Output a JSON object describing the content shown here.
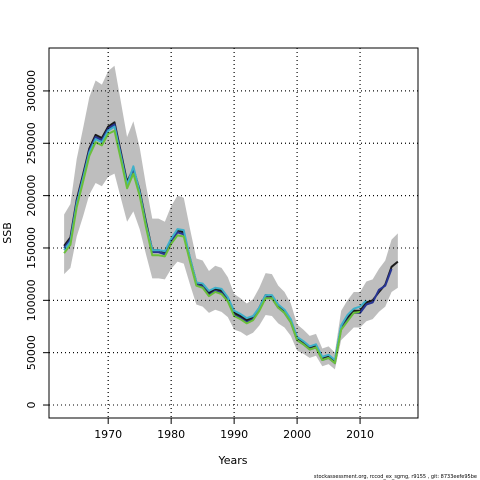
{
  "chart_data": {
    "type": "line",
    "xlabel": "Years",
    "ylabel": "SSB",
    "caption": "stockassessment.org, rccod_ex_sgmg, r9155 , git: 8733eefe95be",
    "x": [
      1963,
      1964,
      1965,
      1966,
      1967,
      1968,
      1969,
      1970,
      1971,
      1972,
      1973,
      1974,
      1975,
      1976,
      1977,
      1978,
      1979,
      1980,
      1981,
      1982,
      1983,
      1984,
      1985,
      1986,
      1987,
      1988,
      1989,
      1990,
      1991,
      1992,
      1993,
      1994,
      1995,
      1996,
      1997,
      1998,
      1999,
      2000,
      2001,
      2002,
      2003,
      2004,
      2005,
      2006,
      2007,
      2008,
      2009,
      2010,
      2011,
      2012,
      2013,
      2014,
      2015,
      2016
    ],
    "band": {
      "color": "#bebebe",
      "upper": [
        182000,
        192000,
        235000,
        264000,
        294000,
        310000,
        306000,
        319000,
        324000,
        290000,
        256000,
        271000,
        246000,
        210000,
        178000,
        178000,
        175000,
        190000,
        200000,
        198000,
        168000,
        140000,
        138000,
        128000,
        133000,
        131000,
        122000,
        106000,
        102000,
        97000,
        101000,
        112000,
        126000,
        125000,
        114000,
        108000,
        97000,
        77000,
        72000,
        66000,
        68000,
        54000,
        56000,
        50000,
        90000,
        100000,
        108000,
        108000,
        118000,
        120000,
        130000,
        138000,
        158000,
        164000
      ],
      "lower": [
        125000,
        131000,
        161000,
        180000,
        201000,
        212000,
        209000,
        218000,
        221000,
        198000,
        175000,
        185000,
        168000,
        144000,
        121000,
        121000,
        120000,
        130000,
        137000,
        135000,
        115000,
        96000,
        94000,
        88000,
        91000,
        89000,
        84000,
        72000,
        70000,
        66000,
        69000,
        76000,
        86000,
        85000,
        78000,
        74000,
        66000,
        52000,
        49000,
        45000,
        47000,
        37000,
        39000,
        34000,
        62000,
        68000,
        74000,
        74000,
        80000,
        82000,
        89000,
        94000,
        108000,
        112000
      ]
    },
    "series": [
      {
        "color": "#1a1a1a",
        "values": [
          152000,
          160000,
          196000,
          220000,
          245000,
          258000,
          255000,
          266000,
          270000,
          242000,
          213000,
          226000,
          205000,
          175000,
          148000,
          148000,
          146000,
          158000,
          167000,
          165000,
          140000,
          117000,
          115000,
          107000,
          111000,
          109000,
          102000,
          88000,
          85000,
          81000,
          84000,
          93000,
          105000,
          104000,
          95000,
          90000,
          81000,
          64000,
          60000,
          55000,
          57000,
          45000,
          47000,
          42000,
          75000,
          83000,
          90000,
          90000,
          98000,
          100000,
          108000,
          115000,
          132000,
          137000
        ]
      },
      {
        "color": "#283593",
        "values": [
          150000,
          158000,
          194000,
          218000,
          243000,
          256000,
          253000,
          264000,
          268000,
          240000,
          211000,
          224000,
          203000,
          173000,
          146000,
          146000,
          144000,
          156000,
          165000,
          163000,
          138000,
          115000,
          113000,
          105000,
          109000,
          107000,
          100000,
          86000,
          83000,
          79000,
          82000,
          91000,
          103000,
          102000,
          93000,
          88000,
          79000,
          62000,
          58000,
          53000,
          55000,
          43000,
          45000,
          40000,
          73000,
          81000,
          88000,
          88000,
          96000,
          98000,
          110000,
          114000,
          130000,
          null
        ]
      },
      {
        "color": "#3fb0c9",
        "values": [
          148000,
          156000,
          192000,
          216000,
          241000,
          254000,
          251000,
          262000,
          266000,
          238000,
          210000,
          228000,
          203000,
          172000,
          148000,
          148000,
          147000,
          159000,
          168000,
          167000,
          140000,
          117000,
          116000,
          109000,
          112000,
          111000,
          103000,
          90000,
          87000,
          83000,
          85000,
          93000,
          105000,
          105000,
          96000,
          91000,
          82000,
          65000,
          61000,
          56000,
          58000,
          46000,
          48000,
          43000,
          76000,
          86000,
          92000,
          94000,
          100000,
          null,
          null,
          null,
          null,
          null
        ]
      },
      {
        "color": "#6abf3a",
        "values": [
          145000,
          153000,
          189000,
          213000,
          238000,
          251000,
          248000,
          259000,
          262000,
          235000,
          207000,
          221000,
          200000,
          170000,
          143000,
          143000,
          142000,
          154000,
          162000,
          161000,
          137000,
          114000,
          112000,
          104000,
          108000,
          106000,
          99000,
          85000,
          82000,
          78000,
          81000,
          90000,
          102000,
          102000,
          93000,
          88000,
          79000,
          62000,
          58000,
          53000,
          55000,
          43000,
          45000,
          40000,
          72000,
          80000,
          88000,
          89000,
          null,
          null,
          null,
          null,
          null,
          null
        ]
      }
    ],
    "xlim": [
      1960.6,
      2019.2
    ],
    "xticks": [
      1970,
      1980,
      1990,
      2000,
      2010
    ],
    "ylim": [
      -12400,
      341000
    ],
    "yticks": [
      0,
      50000,
      100000,
      150000,
      200000,
      250000,
      300000
    ],
    "grid": true
  }
}
